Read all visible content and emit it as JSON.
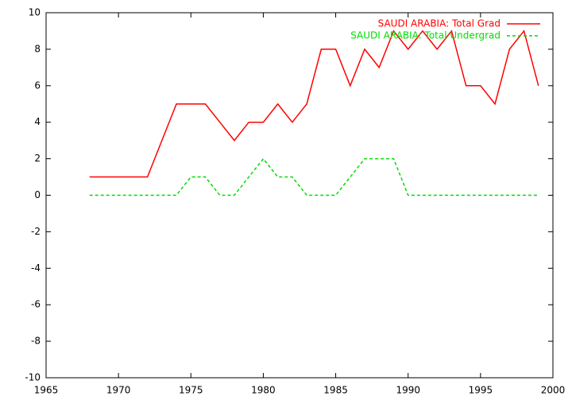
{
  "chart_data": {
    "type": "line",
    "x": [
      1968,
      1969,
      1970,
      1971,
      1972,
      1973,
      1974,
      1975,
      1976,
      1977,
      1978,
      1979,
      1980,
      1981,
      1982,
      1983,
      1984,
      1985,
      1986,
      1987,
      1988,
      1989,
      1990,
      1991,
      1992,
      1993,
      1994,
      1995,
      1996,
      1997,
      1998,
      1999
    ],
    "series": [
      {
        "name": "SAUDI ARABIA: Total Grad",
        "color": "#ff0000",
        "dash": "solid",
        "values": [
          1,
          1,
          1,
          1,
          1,
          3,
          5,
          5,
          5,
          4,
          3,
          4,
          4,
          5,
          4,
          5,
          8,
          8,
          6,
          8,
          7,
          9,
          8,
          9,
          8,
          9,
          6,
          6,
          5,
          8,
          9,
          6
        ]
      },
      {
        "name": "SAUDI ARABIA: Total Undergrad",
        "color": "#00dd00",
        "dash": "dashed",
        "values": [
          0,
          0,
          0,
          0,
          0,
          0,
          0,
          1,
          1,
          0,
          0,
          1,
          2,
          1,
          1,
          0,
          0,
          0,
          1,
          2,
          2,
          2,
          0,
          0,
          0,
          0,
          0,
          0,
          0,
          0,
          0,
          0
        ]
      }
    ],
    "xlim": [
      1965,
      2000
    ],
    "xticks": [
      1965,
      1970,
      1975,
      1980,
      1985,
      1990,
      1995,
      2000
    ],
    "ylim": [
      -10,
      10
    ],
    "yticks": [
      -10,
      -8,
      -6,
      -4,
      -2,
      0,
      2,
      4,
      6,
      8,
      10
    ],
    "grid": false,
    "legend": "top-right"
  }
}
